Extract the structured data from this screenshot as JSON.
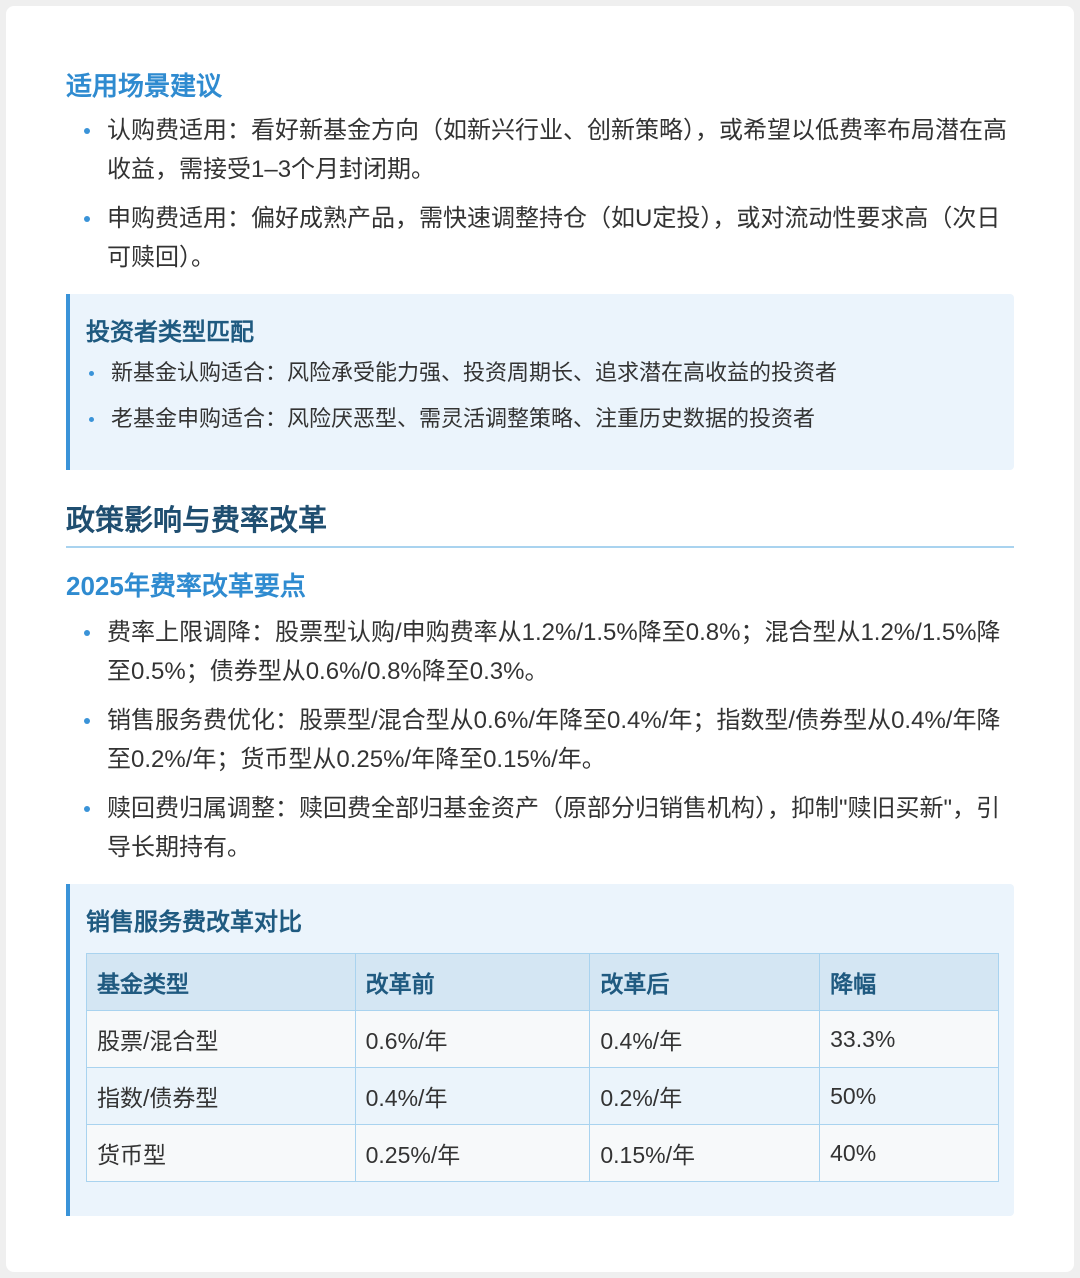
{
  "scenarios": {
    "title": "适用场景建议",
    "items": [
      "认购费适用：看好新基金方向（如新兴行业、创新策略），或希望以低费率布局潜在高收益，需接受1–3个月封闭期。",
      "申购费适用：偏好成熟产品，需快速调整持仓（如U定投），或对流动性要求高（次日可赎回）。"
    ]
  },
  "investor_match": {
    "title": "投资者类型匹配",
    "items": [
      "新基金认购适合：风险承受能力强、投资周期长、追求潜在高收益的投资者",
      "老基金申购适合：风险厌恶型、需灵活调整策略、注重历史数据的投资者"
    ]
  },
  "policy": {
    "title": "政策影响与费率改革",
    "subtitle": "2025年费率改革要点",
    "items": [
      "费率上限调降：股票型认购/申购费率从1.2%/1.5%降至0.8%；混合型从1.2%/1.5%降至0.5%；债券型从0.6%/0.8%降至0.3%。",
      "销售服务费优化：股票型/混合型从0.6%/年降至0.4%/年；指数型/债券型从0.4%/年降至0.2%/年；货币型从0.25%/年降至0.15%/年。",
      "赎回费归属调整：赎回费全部归基金资产（原部分归销售机构），抑制\"赎旧买新\"，引导长期持有。"
    ]
  },
  "comparison": {
    "title": "销售服务费改革对比",
    "headers": [
      "基金类型",
      "改革前",
      "改革后",
      "降幅"
    ],
    "rows": [
      [
        "股票/混合型",
        "0.6%/年",
        "0.4%/年",
        "33.3%"
      ],
      [
        "指数/债券型",
        "0.4%/年",
        "0.2%/年",
        "50%"
      ],
      [
        "货币型",
        "0.25%/年",
        "0.15%/年",
        "40%"
      ]
    ]
  },
  "colors": {
    "accent": "#3a93d8",
    "heading": "#2f8bd0",
    "dark_heading": "#1f4e70",
    "callout_bg": "#ebf4fc"
  }
}
